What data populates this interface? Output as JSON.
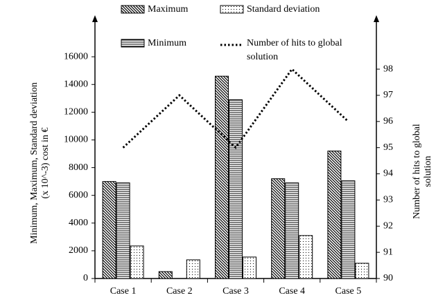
{
  "chart_data": {
    "type": "bar",
    "y_label": "Minimum, Maximum, Standard deviation (x 10^-3) cost in €",
    "y2_label": "Number of hits to global solution",
    "categories": [
      "Case 1",
      "Case 2",
      "Case 3",
      "Case 4",
      "Case 5"
    ],
    "series": [
      {
        "name": "Maximum",
        "type": "bar",
        "pattern": "diagonal",
        "color": "#000000",
        "values": [
          7000,
          500,
          14600,
          7200,
          9200
        ]
      },
      {
        "name": "Minimum",
        "type": "bar",
        "pattern": "horizontal",
        "color": "#000000",
        "values": [
          6900,
          0,
          12900,
          6900,
          7050
        ]
      },
      {
        "name": "Standard deviation",
        "type": "bar",
        "pattern": "dots",
        "color": "#000000",
        "values": [
          2350,
          1350,
          1550,
          3100,
          1100
        ]
      },
      {
        "name": "Number of hits to global solution",
        "type": "line",
        "axis": "y2",
        "style": "dotted",
        "color": "#000000",
        "values": [
          95,
          97,
          95,
          98,
          96
        ]
      }
    ],
    "ylim": [
      0,
      18600
    ],
    "yticks": [
      0,
      2000,
      4000,
      6000,
      8000,
      10000,
      12000,
      14000,
      16000
    ],
    "y2lim": [
      90,
      99.85
    ],
    "y2ticks": [
      90,
      91,
      92,
      93,
      94,
      95,
      96,
      97,
      98
    ],
    "grid": false
  }
}
